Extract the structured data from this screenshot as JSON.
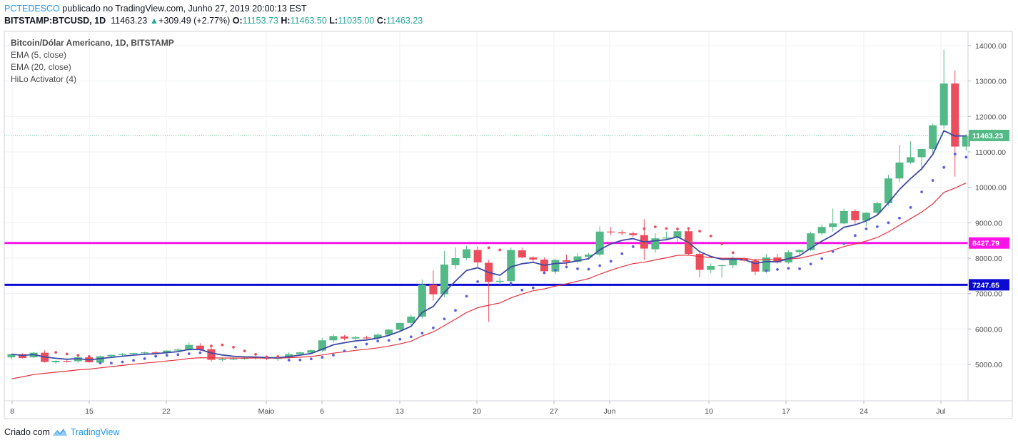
{
  "header": {
    "author": "PCTEDESCO",
    "published_text": "publicado no TradingView.com, Junho 27, 2019 20:00:13 EST",
    "symbol": "BITSTAMP:BTCUSD, 1D",
    "last": "11463.23",
    "arrow": "▲",
    "change": "+309.49 (+2.77%)",
    "o_label": "O:",
    "o_value": "11153.73",
    "h_label": "H:",
    "h_value": "11463.50",
    "l_label": "L:",
    "l_value": "11035.00",
    "c_label": "C:",
    "c_value": "11463.23"
  },
  "legend": {
    "title": "Bitcoin/Dólar Americano, 1D, BITSTAMP",
    "ema5": "EMA (5, close)",
    "ema20": "EMA (20, close)",
    "hilo": "HiLo Activator (4)"
  },
  "footer": {
    "prefix": "Criado com",
    "brand": "TradingView"
  },
  "colors": {
    "up": "#53b987",
    "down": "#eb4d5c",
    "ema5": "#3d4aa4",
    "ema20": "#e8313d",
    "hilo_up": "#5b5fe0",
    "hilo_down": "#eb4d5c",
    "resistance": "#ff14e8",
    "support": "#0a0ad2",
    "last_price": "#53b987",
    "grid": "#eef0f3",
    "axis_border": "#d0d3d9"
  },
  "chart_data": {
    "type": "candlestick",
    "y_axis": {
      "ticks": [
        "5000.00",
        "6000.00",
        "7000.00",
        "8000.00",
        "9000.00",
        "10000.00",
        "11000.00",
        "12000.00",
        "13000.00",
        "14000.00"
      ]
    },
    "x_axis": {
      "ticks": [
        "8",
        "15",
        "22",
        "Maio",
        "6",
        "13",
        "20",
        "27",
        "Jun",
        "10",
        "17",
        "24",
        "Jul"
      ]
    },
    "horizontal_lines": [
      {
        "name": "resistance",
        "value": 8427.79,
        "label": "8427.79"
      },
      {
        "name": "support",
        "value": 7247.65,
        "label": "7247.65"
      }
    ],
    "last_price_label": "11463.23",
    "last_price": 11463.23,
    "candles": [
      {
        "o": 5200,
        "h": 5300,
        "l": 5150,
        "c": 5290
      },
      {
        "o": 5290,
        "h": 5310,
        "l": 5170,
        "c": 5180
      },
      {
        "o": 5200,
        "h": 5350,
        "l": 5180,
        "c": 5330
      },
      {
        "o": 5330,
        "h": 5400,
        "l": 5050,
        "c": 5070
      },
      {
        "o": 5060,
        "h": 5120,
        "l": 5020,
        "c": 5100
      },
      {
        "o": 5100,
        "h": 5150,
        "l": 5050,
        "c": 5090
      },
      {
        "o": 5090,
        "h": 5220,
        "l": 5050,
        "c": 5200
      },
      {
        "o": 5200,
        "h": 5230,
        "l": 5050,
        "c": 5060
      },
      {
        "o": 5050,
        "h": 5250,
        "l": 5000,
        "c": 5230
      },
      {
        "o": 5230,
        "h": 5280,
        "l": 5180,
        "c": 5270
      },
      {
        "o": 5270,
        "h": 5320,
        "l": 5220,
        "c": 5300
      },
      {
        "o": 5300,
        "h": 5330,
        "l": 5250,
        "c": 5320
      },
      {
        "o": 5320,
        "h": 5360,
        "l": 5270,
        "c": 5340
      },
      {
        "o": 5340,
        "h": 5380,
        "l": 5290,
        "c": 5330
      },
      {
        "o": 5330,
        "h": 5400,
        "l": 5300,
        "c": 5390
      },
      {
        "o": 5390,
        "h": 5460,
        "l": 5350,
        "c": 5420
      },
      {
        "o": 5400,
        "h": 5620,
        "l": 5380,
        "c": 5550
      },
      {
        "o": 5530,
        "h": 5600,
        "l": 5380,
        "c": 5410
      },
      {
        "o": 5430,
        "h": 5520,
        "l": 5080,
        "c": 5130
      },
      {
        "o": 5120,
        "h": 5200,
        "l": 5080,
        "c": 5150
      },
      {
        "o": 5150,
        "h": 5200,
        "l": 5120,
        "c": 5160
      },
      {
        "o": 5160,
        "h": 5220,
        "l": 5130,
        "c": 5180
      },
      {
        "o": 5180,
        "h": 5230,
        "l": 5130,
        "c": 5200
      },
      {
        "o": 5200,
        "h": 5230,
        "l": 5120,
        "c": 5160
      },
      {
        "o": 5160,
        "h": 5200,
        "l": 5100,
        "c": 5180
      },
      {
        "o": 5180,
        "h": 5350,
        "l": 5150,
        "c": 5290
      },
      {
        "o": 5290,
        "h": 5360,
        "l": 5250,
        "c": 5340
      },
      {
        "o": 5330,
        "h": 5420,
        "l": 5300,
        "c": 5400
      },
      {
        "o": 5390,
        "h": 5750,
        "l": 5350,
        "c": 5680
      },
      {
        "o": 5680,
        "h": 5850,
        "l": 5620,
        "c": 5800
      },
      {
        "o": 5790,
        "h": 5830,
        "l": 5680,
        "c": 5730
      },
      {
        "o": 5730,
        "h": 5800,
        "l": 5650,
        "c": 5770
      },
      {
        "o": 5760,
        "h": 5810,
        "l": 5690,
        "c": 5740
      },
      {
        "o": 5740,
        "h": 5880,
        "l": 5700,
        "c": 5840
      },
      {
        "o": 5840,
        "h": 6000,
        "l": 5800,
        "c": 5980
      },
      {
        "o": 5980,
        "h": 6180,
        "l": 5930,
        "c": 6170
      },
      {
        "o": 6170,
        "h": 6400,
        "l": 6100,
        "c": 6350
      },
      {
        "o": 6350,
        "h": 7400,
        "l": 6300,
        "c": 7250
      },
      {
        "o": 7250,
        "h": 7650,
        "l": 6800,
        "c": 6980
      },
      {
        "o": 6980,
        "h": 8200,
        "l": 6900,
        "c": 7820
      },
      {
        "o": 7800,
        "h": 8300,
        "l": 7700,
        "c": 8000
      },
      {
        "o": 8000,
        "h": 8350,
        "l": 7950,
        "c": 8250
      },
      {
        "o": 8230,
        "h": 8330,
        "l": 7750,
        "c": 7880
      },
      {
        "o": 7870,
        "h": 7950,
        "l": 6200,
        "c": 7330
      },
      {
        "o": 7330,
        "h": 7450,
        "l": 7250,
        "c": 7360
      },
      {
        "o": 7350,
        "h": 8300,
        "l": 7200,
        "c": 8230
      },
      {
        "o": 8220,
        "h": 8300,
        "l": 8000,
        "c": 8020
      },
      {
        "o": 8020,
        "h": 8050,
        "l": 7900,
        "c": 7960
      },
      {
        "o": 7960,
        "h": 8020,
        "l": 7550,
        "c": 7630
      },
      {
        "o": 7620,
        "h": 7980,
        "l": 7550,
        "c": 7950
      },
      {
        "o": 7940,
        "h": 8100,
        "l": 7800,
        "c": 7900
      },
      {
        "o": 7900,
        "h": 8150,
        "l": 7850,
        "c": 8050
      },
      {
        "o": 8040,
        "h": 8150,
        "l": 7950,
        "c": 8100
      },
      {
        "o": 8100,
        "h": 8900,
        "l": 8050,
        "c": 8750
      },
      {
        "o": 8750,
        "h": 8880,
        "l": 8650,
        "c": 8730
      },
      {
        "o": 8730,
        "h": 8800,
        "l": 8650,
        "c": 8700
      },
      {
        "o": 8700,
        "h": 8750,
        "l": 8600,
        "c": 8650
      },
      {
        "o": 8650,
        "h": 9100,
        "l": 7950,
        "c": 8270
      },
      {
        "o": 8250,
        "h": 8700,
        "l": 8150,
        "c": 8560
      },
      {
        "o": 8560,
        "h": 8750,
        "l": 8500,
        "c": 8580
      },
      {
        "o": 8580,
        "h": 8800,
        "l": 8450,
        "c": 8760
      },
      {
        "o": 8760,
        "h": 8800,
        "l": 8080,
        "c": 8120
      },
      {
        "o": 8120,
        "h": 8150,
        "l": 7450,
        "c": 7670
      },
      {
        "o": 7670,
        "h": 7850,
        "l": 7580,
        "c": 7780
      },
      {
        "o": 7780,
        "h": 7820,
        "l": 7450,
        "c": 7800
      },
      {
        "o": 7800,
        "h": 8050,
        "l": 7720,
        "c": 7990
      },
      {
        "o": 7990,
        "h": 8020,
        "l": 7900,
        "c": 7930
      },
      {
        "o": 7930,
        "h": 7980,
        "l": 7520,
        "c": 7620
      },
      {
        "o": 7620,
        "h": 8120,
        "l": 7580,
        "c": 8020
      },
      {
        "o": 8020,
        "h": 8120,
        "l": 7850,
        "c": 7880
      },
      {
        "o": 7880,
        "h": 8220,
        "l": 7850,
        "c": 8170
      },
      {
        "o": 8170,
        "h": 8250,
        "l": 8050,
        "c": 8230
      },
      {
        "o": 8230,
        "h": 8750,
        "l": 8200,
        "c": 8700
      },
      {
        "o": 8700,
        "h": 8950,
        "l": 8650,
        "c": 8880
      },
      {
        "o": 8880,
        "h": 9400,
        "l": 8750,
        "c": 8980
      },
      {
        "o": 8980,
        "h": 9400,
        "l": 8950,
        "c": 9330
      },
      {
        "o": 9330,
        "h": 9380,
        "l": 8950,
        "c": 9070
      },
      {
        "o": 9060,
        "h": 9300,
        "l": 8900,
        "c": 9280
      },
      {
        "o": 9280,
        "h": 9600,
        "l": 9200,
        "c": 9550
      },
      {
        "o": 9550,
        "h": 10350,
        "l": 9480,
        "c": 10250
      },
      {
        "o": 10250,
        "h": 11200,
        "l": 10150,
        "c": 10700
      },
      {
        "o": 10700,
        "h": 11300,
        "l": 10650,
        "c": 10850
      },
      {
        "o": 10850,
        "h": 11100,
        "l": 10500,
        "c": 11080
      },
      {
        "o": 11080,
        "h": 11800,
        "l": 10950,
        "c": 11750
      },
      {
        "o": 11750,
        "h": 13880,
        "l": 11650,
        "c": 12930
      },
      {
        "o": 12930,
        "h": 13300,
        "l": 10300,
        "c": 11150
      },
      {
        "o": 11150,
        "h": 11500,
        "l": 11035,
        "c": 11463
      }
    ]
  }
}
